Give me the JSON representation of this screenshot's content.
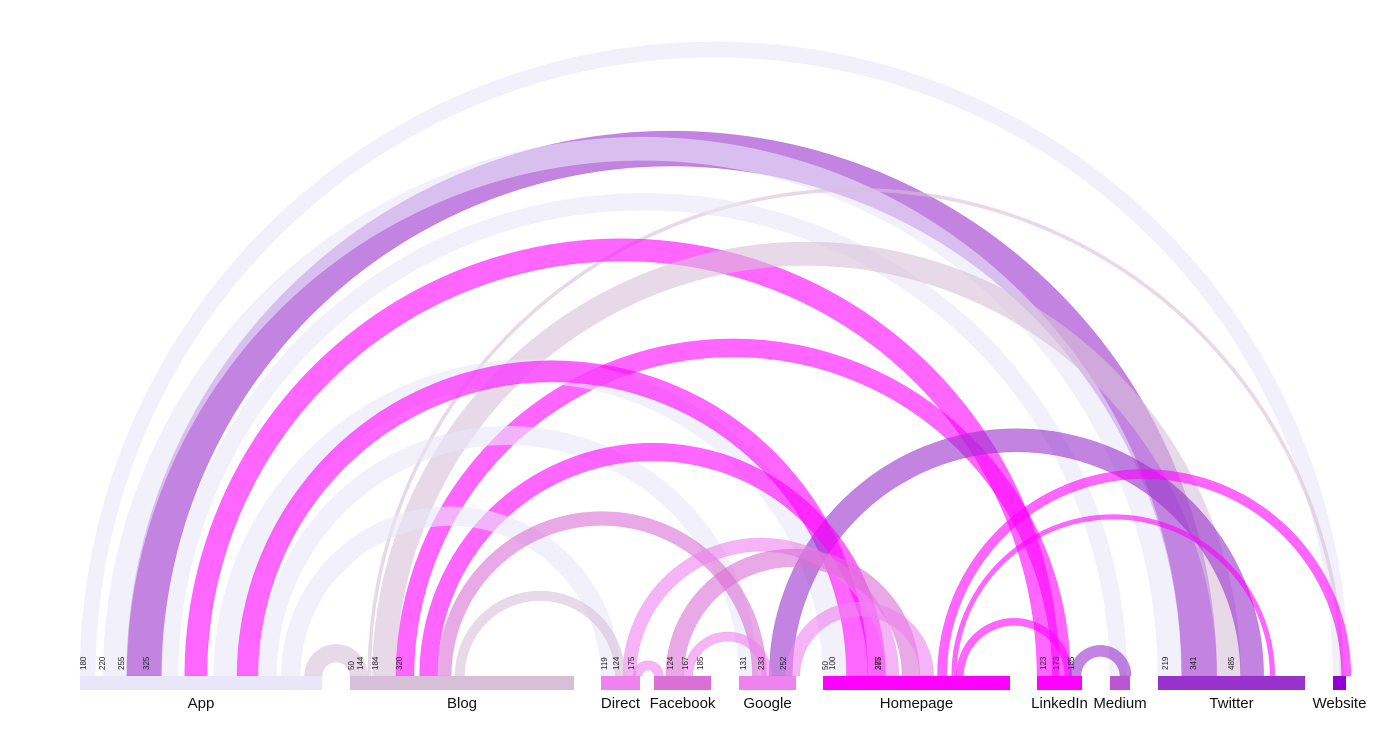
{
  "chart_data": {
    "type": "arc",
    "nodes": [
      {
        "name": "App",
        "color": "#e8e6f8"
      },
      {
        "name": "Blog",
        "color": "#d8bfd8"
      },
      {
        "name": "Direct",
        "color": "#ee82ee"
      },
      {
        "name": "Facebook",
        "color": "#da70d6"
      },
      {
        "name": "Google",
        "color": "#ee82ee"
      },
      {
        "name": "Homepage",
        "color": "#ff00ff"
      },
      {
        "name": "LinkedIn",
        "color": "#ff00ff"
      },
      {
        "name": "Medium",
        "color": "#ba55d3"
      },
      {
        "name": "Twitter",
        "color": "#9932cc"
      },
      {
        "name": "Website",
        "color": "#9400d3"
      }
    ],
    "tick_labels": [
      {
        "node": "App",
        "labels": [
          "180",
          "220",
          "255",
          "325"
        ]
      },
      {
        "node": "Blog",
        "labels": [
          "50",
          "144",
          "184",
          "320"
        ]
      },
      {
        "node": "Direct",
        "labels": [
          "119",
          "124",
          "175"
        ]
      },
      {
        "node": "Facebook",
        "labels": [
          "124",
          "167",
          "185"
        ]
      },
      {
        "node": "Google",
        "labels": [
          "131",
          "233",
          "252"
        ]
      },
      {
        "node": "Homepage",
        "labels": [
          "50",
          "100",
          "287",
          "375"
        ]
      },
      {
        "node": "LinkedIn",
        "labels": [
          "123",
          "173",
          "185"
        ]
      },
      {
        "node": "Twitter",
        "labels": [
          "219",
          "341",
          "485"
        ]
      }
    ],
    "links": [
      {
        "source": "App",
        "target": "Website",
        "value": 20,
        "color": "#e8e6f8"
      },
      {
        "source": "App",
        "target": "Twitter",
        "value": 20,
        "color": "#e8e6f8"
      },
      {
        "source": "App",
        "target": "Medium",
        "value": 20,
        "color": "#e8e6f8"
      },
      {
        "source": "App",
        "target": "Homepage",
        "value": 20,
        "color": "#e8e6f8"
      },
      {
        "source": "App",
        "target": "Google",
        "value": 20,
        "color": "#e8e6f8"
      },
      {
        "source": "App",
        "target": "Direct",
        "value": 20,
        "color": "#e8e6f8"
      },
      {
        "source": "App",
        "target": "Blog",
        "value": 15,
        "color": "#d8bfd8"
      },
      {
        "source": "App",
        "target": "LinkedIn",
        "value": 25,
        "color": "#ff00ff"
      },
      {
        "source": "App",
        "target": "Homepage",
        "value": 18,
        "color": "#ff00ff"
      },
      {
        "source": "App",
        "target": "Twitter",
        "value": 30,
        "color": "#9932cc"
      },
      {
        "source": "Blog",
        "target": "Website",
        "value": 4,
        "color": "#d8bfd8"
      },
      {
        "source": "Blog",
        "target": "Twitter",
        "value": 20,
        "color": "#d8bfd8"
      },
      {
        "source": "Blog",
        "target": "Homepage",
        "value": 15,
        "color": "#ff00ff"
      },
      {
        "source": "Blog",
        "target": "Google",
        "value": 15,
        "color": "#da70d6"
      },
      {
        "source": "Blog",
        "target": "Direct",
        "value": 10,
        "color": "#d8bfd8"
      },
      {
        "source": "Blog",
        "target": "LinkedIn",
        "value": 20,
        "color": "#ff00ff"
      },
      {
        "source": "Direct",
        "target": "Homepage",
        "value": 14,
        "color": "#ee82ee"
      },
      {
        "source": "Direct",
        "target": "Facebook",
        "value": 10,
        "color": "#ee82ee"
      },
      {
        "source": "Facebook",
        "target": "Homepage",
        "value": 15,
        "color": "#da70d6"
      },
      {
        "source": "Facebook",
        "target": "Google",
        "value": 10,
        "color": "#ee82ee"
      },
      {
        "source": "Google",
        "target": "Homepage",
        "value": 15,
        "color": "#ee82ee"
      },
      {
        "source": "Google",
        "target": "Twitter",
        "value": 25,
        "color": "#9932cc"
      },
      {
        "source": "Homepage",
        "target": "Website",
        "value": 12,
        "color": "#ff00ff"
      },
      {
        "source": "Homepage",
        "target": "Twitter",
        "value": 4,
        "color": "#ff00ff"
      },
      {
        "source": "Homepage",
        "target": "LinkedIn",
        "value": 8,
        "color": "#ff00ff"
      },
      {
        "source": "LinkedIn",
        "target": "Medium",
        "value": 20,
        "color": "#9932cc"
      }
    ]
  }
}
